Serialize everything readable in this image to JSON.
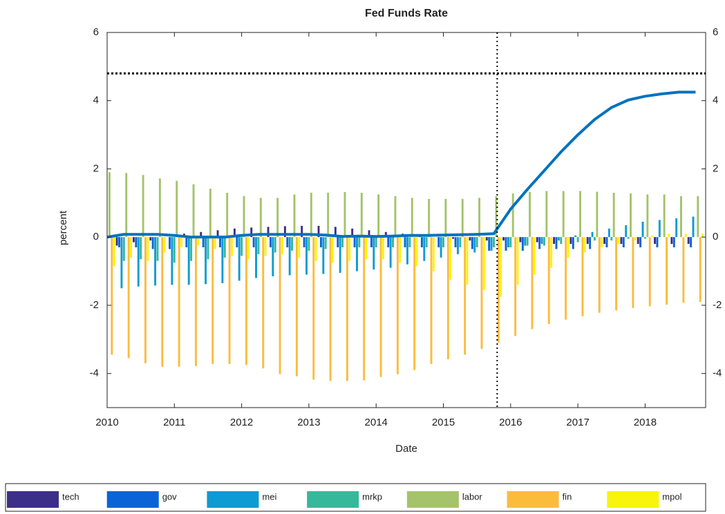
{
  "chart_data": {
    "type": "bar",
    "title": "Fed Funds Rate",
    "x_label": "Date",
    "y_label": "percent",
    "x": [
      2010,
      2010.25,
      2010.5,
      2010.75,
      2011,
      2011.25,
      2011.5,
      2011.75,
      2012,
      2012.25,
      2012.5,
      2012.75,
      2013,
      2013.25,
      2013.5,
      2013.75,
      2014,
      2014.25,
      2014.5,
      2014.75,
      2015,
      2015.25,
      2015.5,
      2015.75,
      2016,
      2016.25,
      2016.5,
      2016.75,
      2017,
      2017.25,
      2017.5,
      2017.75,
      2018,
      2018.25,
      2018.5,
      2018.75
    ],
    "series": [
      {
        "name": "tech",
        "color": "#3b2f8a",
        "values": [
          -0.1,
          -0.25,
          -0.15,
          -0.1,
          0,
          0.1,
          0.15,
          0.2,
          0.25,
          0.28,
          0.3,
          0.32,
          0.33,
          0.33,
          0.3,
          0.25,
          0.2,
          0.15,
          0.1,
          0.05,
          0,
          -0.05,
          -0.1,
          -0.1,
          -0.1,
          -0.15,
          -0.15,
          -0.2,
          -0.2,
          -0.2,
          -0.2,
          -0.2,
          -0.2,
          -0.2,
          -0.2,
          -0.2
        ]
      },
      {
        "name": "gov",
        "color": "#0a64d8",
        "values": [
          -0.2,
          -0.3,
          -0.3,
          -0.35,
          -0.35,
          -0.3,
          -0.3,
          -0.3,
          -0.3,
          -0.3,
          -0.3,
          -0.3,
          -0.3,
          -0.3,
          -0.3,
          -0.3,
          -0.3,
          -0.3,
          -0.3,
          -0.3,
          -0.3,
          -0.3,
          -0.35,
          -0.4,
          -0.4,
          -0.4,
          -0.35,
          -0.35,
          -0.35,
          -0.35,
          -0.3,
          -0.3,
          -0.3,
          -0.3,
          -0.3,
          -0.3
        ]
      },
      {
        "name": "mei",
        "color": "#0d9bd3",
        "values": [
          -0.15,
          -1.5,
          -1.45,
          -1.42,
          -1.4,
          -1.4,
          -1.38,
          -1.35,
          -1.28,
          -1.2,
          -1.15,
          -1.12,
          -1.1,
          -1.08,
          -1.05,
          -1,
          -0.95,
          -0.9,
          -0.8,
          -0.7,
          -0.6,
          -0.5,
          -0.45,
          -0.4,
          -0.3,
          -0.25,
          -0.2,
          -0.1,
          0.05,
          0.15,
          0.25,
          0.35,
          0.45,
          0.5,
          0.55,
          0.6
        ]
      },
      {
        "name": "mrkp",
        "color": "#36b89b",
        "values": [
          -0.05,
          -0.7,
          -0.65,
          -0.7,
          -0.75,
          -0.7,
          -0.65,
          -0.6,
          -0.55,
          -0.5,
          -0.45,
          -0.4,
          -0.4,
          -0.35,
          -0.3,
          -0.3,
          -0.3,
          -0.3,
          -0.3,
          -0.3,
          -0.3,
          -0.3,
          -0.3,
          -0.3,
          -0.3,
          -0.25,
          -0.25,
          -0.2,
          -0.15,
          -0.1,
          -0.1,
          -0.05,
          -0.05,
          0,
          0,
          0
        ]
      },
      {
        "name": "labor",
        "color": "#a5c36a",
        "values": [
          1.9,
          1.88,
          1.82,
          1.72,
          1.65,
          1.55,
          1.42,
          1.3,
          1.2,
          1.15,
          1.15,
          1.25,
          1.3,
          1.3,
          1.32,
          1.3,
          1.25,
          1.2,
          1.15,
          1.12,
          1.12,
          1.12,
          1.15,
          1.2,
          1.28,
          1.32,
          1.35,
          1.35,
          1.35,
          1.33,
          1.3,
          1.28,
          1.25,
          1.25,
          1.2,
          1.2
        ]
      },
      {
        "name": "fin",
        "color": "#fbbc3c",
        "values": [
          -3.45,
          -3.55,
          -3.7,
          -3.8,
          -3.8,
          -3.78,
          -3.72,
          -3.72,
          -3.75,
          -3.85,
          -4.02,
          -4.08,
          -4.18,
          -4.22,
          -4.22,
          -4.2,
          -4.1,
          -4.02,
          -3.9,
          -3.72,
          -3.58,
          -3.45,
          -3.28,
          -3.1,
          -2.9,
          -2.7,
          -2.55,
          -2.42,
          -2.32,
          -2.22,
          -2.15,
          -2.08,
          -2.03,
          -1.98,
          -1.93,
          -1.9
        ]
      },
      {
        "name": "mpol",
        "color": "#f8f40c",
        "values": [
          -0.85,
          -0.6,
          -0.7,
          -0.45,
          -0.3,
          -0.25,
          -0.35,
          -0.55,
          -0.65,
          -0.55,
          -0.5,
          -0.6,
          -0.7,
          -0.75,
          -0.7,
          -0.65,
          -0.65,
          -0.75,
          -0.85,
          -1,
          -1.25,
          -1.4,
          -1.55,
          -1.75,
          -1.4,
          -1.1,
          -0.9,
          -0.6,
          -0.45,
          -0.3,
          -0.2,
          -0.1,
          0.05,
          0.1,
          0.1,
          0.1
        ]
      }
    ],
    "line": {
      "color": "#0072bd",
      "values": [
        0,
        0.08,
        0.08,
        0.08,
        0.05,
        0,
        0,
        0,
        0.05,
        0.08,
        0.08,
        0.08,
        0.08,
        0.06,
        0.02,
        0.03,
        0.02,
        0.03,
        0.05,
        0.05,
        0.06,
        0.07,
        0.08,
        0.1,
        0.82,
        1.4,
        1.95,
        2.5,
        3,
        3.45,
        3.8,
        4.02,
        4.13,
        4.2,
        4.25,
        4.25
      ]
    },
    "reference_lines": {
      "y": 4.8,
      "x": 2015.8
    },
    "xlim": [
      2010,
      2018.9
    ],
    "xticks": [
      2010,
      2011,
      2012,
      2013,
      2014,
      2015,
      2016,
      2017,
      2018
    ],
    "ylim": [
      -5,
      6
    ],
    "yticks": [
      -4,
      -2,
      0,
      2,
      4,
      6
    ]
  }
}
